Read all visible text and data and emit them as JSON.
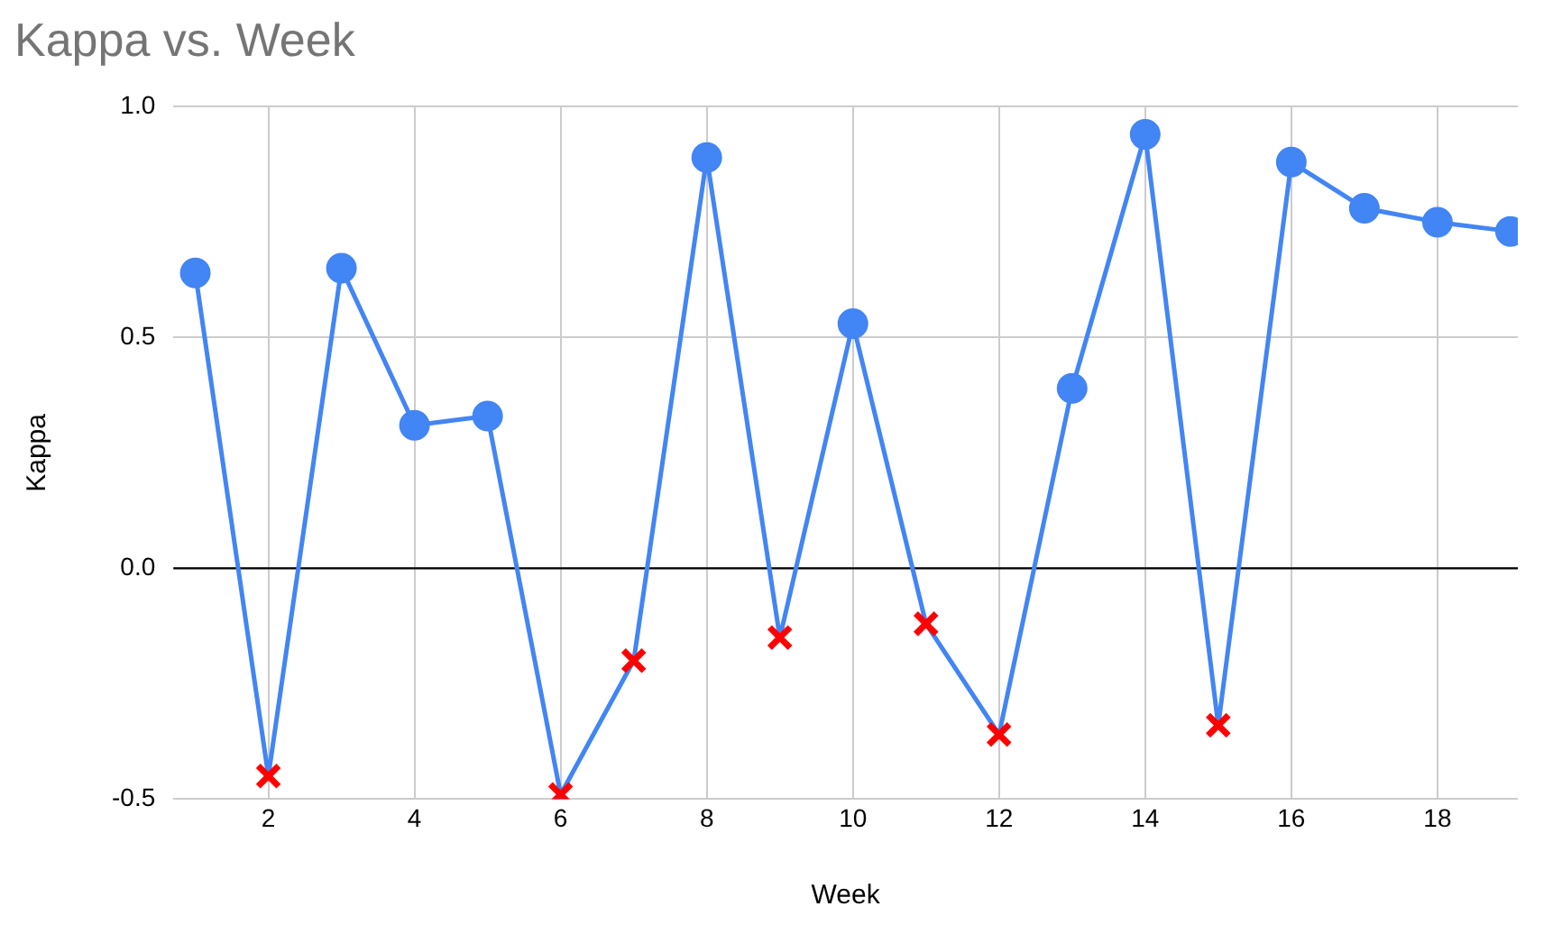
{
  "chart_data": {
    "type": "line",
    "title": "Kappa vs. Week",
    "xlabel": "Week",
    "ylabel": "Kappa",
    "xlim": [
      0.7,
      19.1
    ],
    "xticks": [
      2,
      4,
      6,
      8,
      10,
      12,
      14,
      16,
      18
    ],
    "ylim": [
      -0.5,
      1.0
    ],
    "yticks": [
      {
        "value": -0.5,
        "label": "-0.5"
      },
      {
        "value": 0,
        "label": "0.0"
      },
      {
        "value": 0.5,
        "label": "0.5"
      },
      {
        "value": 1,
        "label": "1.0"
      }
    ],
    "grid": true,
    "legend": false,
    "ref_lines": [
      {
        "axis": "y",
        "value": 0,
        "color": "#000000"
      }
    ],
    "series": [
      {
        "type": "line",
        "marker": "none",
        "color": "#4285f4",
        "x": [
          1,
          2,
          3,
          4,
          5,
          6,
          7,
          8,
          9,
          10,
          11,
          12,
          13,
          14,
          15,
          16,
          17,
          18,
          19
        ],
        "values": [
          0.64,
          -0.45,
          0.65,
          0.31,
          0.33,
          -0.49,
          -0.2,
          0.89,
          -0.15,
          0.53,
          -0.12,
          -0.36,
          0.39,
          0.94,
          -0.34,
          0.88,
          0.78,
          0.75,
          0.73
        ]
      },
      {
        "type": "scatter",
        "marker": "circle",
        "color": "#4285f4",
        "x": [
          1,
          3,
          4,
          5,
          8,
          10,
          13,
          14,
          16,
          17,
          18,
          19
        ],
        "values": [
          0.64,
          0.65,
          0.31,
          0.33,
          0.89,
          0.53,
          0.39,
          0.94,
          0.88,
          0.78,
          0.75,
          0.73
        ]
      },
      {
        "type": "scatter",
        "marker": "cross",
        "color": "#ff0000",
        "x": [
          2,
          6,
          7,
          9,
          11,
          12,
          15
        ],
        "values": [
          -0.45,
          -0.49,
          -0.2,
          -0.15,
          -0.12,
          -0.36,
          -0.34
        ]
      }
    ]
  }
}
